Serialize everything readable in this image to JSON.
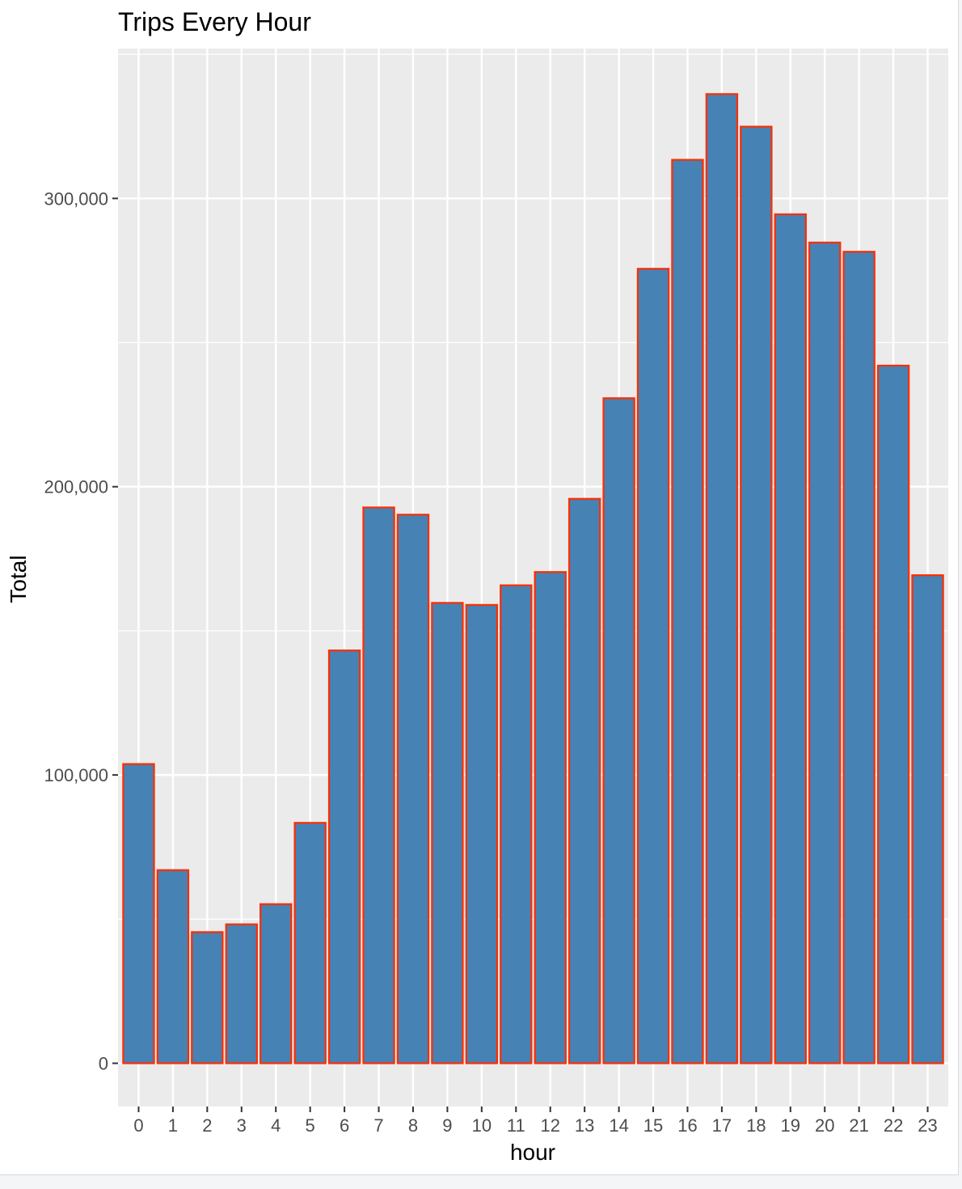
{
  "chart_data": {
    "type": "bar",
    "title": "Trips Every Hour",
    "xlabel": "hour",
    "ylabel": "Total",
    "categories": [
      "0",
      "1",
      "2",
      "3",
      "4",
      "5",
      "6",
      "7",
      "8",
      "9",
      "10",
      "11",
      "12",
      "13",
      "14",
      "15",
      "16",
      "17",
      "18",
      "19",
      "20",
      "21",
      "22",
      "23"
    ],
    "values": [
      103800,
      67000,
      45500,
      48200,
      55200,
      83400,
      143200,
      192800,
      190300,
      159700,
      159000,
      165800,
      170400,
      195800,
      230700,
      275600,
      313400,
      336200,
      324900,
      294500,
      284700,
      281500,
      242000,
      169300
    ],
    "y_ticks": [
      0,
      100000,
      200000,
      300000
    ],
    "y_tick_labels": [
      "0",
      "100,000",
      "200,000",
      "300,000"
    ],
    "ylim": [
      -15000,
      352000
    ],
    "grid": true,
    "colors": {
      "bar_fill": "#4682b4",
      "bar_outline": "#ff2d00",
      "panel": "#ebebeb",
      "grid": "#ffffff"
    }
  }
}
